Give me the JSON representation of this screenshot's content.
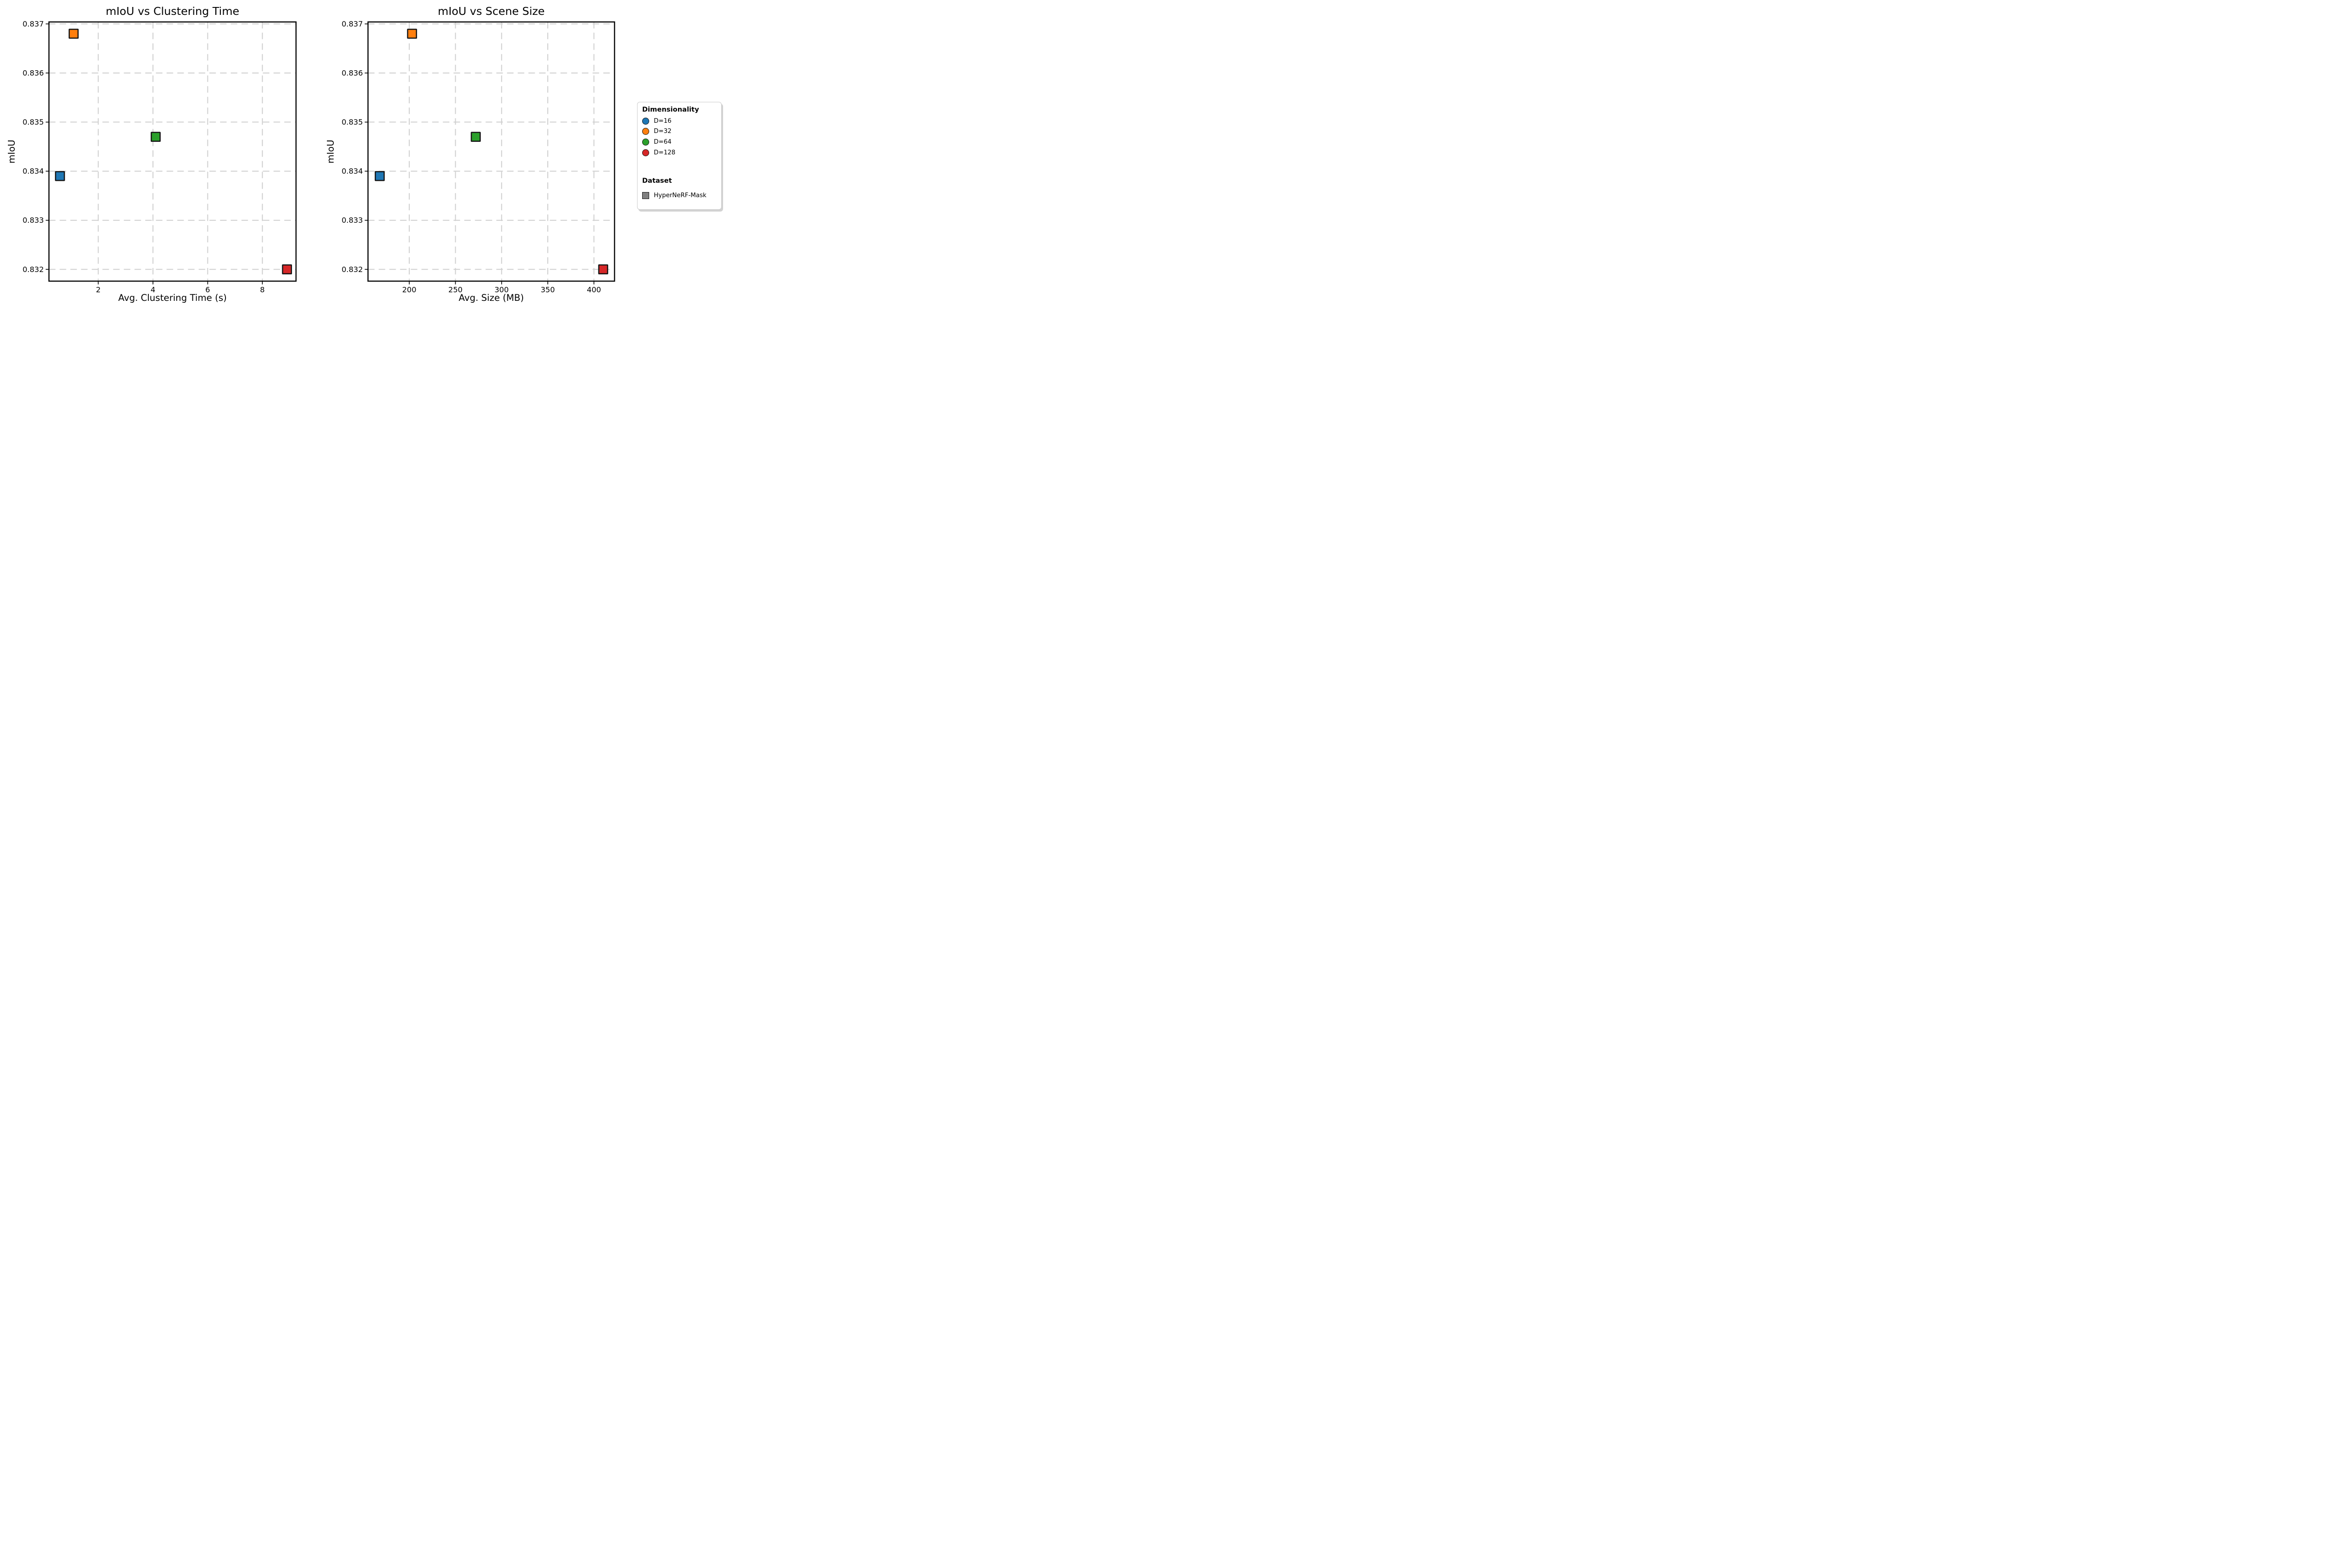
{
  "figure": {
    "background": "#ffffff",
    "text_color": "#000000",
    "grid_color": "#cfcfcf",
    "spine_color": "#000000",
    "marker_edge_color": "#151515"
  },
  "chart_data": [
    {
      "type": "scatter",
      "title": "mIoU vs Clustering Time",
      "xlabel": "Avg. Clustering Time (s)",
      "ylabel": "mIoU",
      "xlim": [
        0.198,
        9.23
      ],
      "ylim": [
        0.83176,
        0.83704
      ],
      "xticks": [
        2,
        4,
        6,
        8
      ],
      "xtick_labels": [
        "2",
        "4",
        "6",
        "8"
      ],
      "yticks": [
        0.837,
        0.836,
        0.835,
        0.834,
        0.833,
        0.832
      ],
      "ytick_labels": [
        "0.837",
        "0.836",
        "0.835",
        "0.834",
        "0.833",
        "0.832"
      ],
      "grid": true,
      "marker": "square",
      "series": [
        {
          "name": "D=16",
          "color": "#1f77b4",
          "x": [
            0.6
          ],
          "y": [
            0.8339
          ]
        },
        {
          "name": "D=32",
          "color": "#ff7f0e",
          "x": [
            1.1
          ],
          "y": [
            0.8368
          ]
        },
        {
          "name": "D=64",
          "color": "#2ca02c",
          "x": [
            4.1
          ],
          "y": [
            0.8347
          ]
        },
        {
          "name": "D=128",
          "color": "#d62728",
          "x": [
            8.9
          ],
          "y": [
            0.832
          ]
        }
      ]
    },
    {
      "type": "scatter",
      "title": "mIoU vs Scene Size",
      "xlabel": "Avg. Size (MB)",
      "ylabel": "mIoU",
      "xlim": [
        155.3,
        422.3
      ],
      "ylim": [
        0.83176,
        0.83704
      ],
      "xticks": [
        200,
        250,
        300,
        350,
        400
      ],
      "xtick_labels": [
        "200",
        "250",
        "300",
        "350",
        "400"
      ],
      "yticks": [
        0.837,
        0.836,
        0.835,
        0.834,
        0.833,
        0.832
      ],
      "ytick_labels": [
        "0.837",
        "0.836",
        "0.835",
        "0.834",
        "0.833",
        "0.832"
      ],
      "grid": true,
      "marker": "square",
      "series": [
        {
          "name": "D=16",
          "color": "#1f77b4",
          "x": [
            168
          ],
          "y": [
            0.8339
          ]
        },
        {
          "name": "D=32",
          "color": "#ff7f0e",
          "x": [
            203
          ],
          "y": [
            0.8368
          ]
        },
        {
          "name": "D=64",
          "color": "#2ca02c",
          "x": [
            272
          ],
          "y": [
            0.8347
          ]
        },
        {
          "name": "D=128",
          "color": "#d62728",
          "x": [
            410
          ],
          "y": [
            0.832
          ]
        }
      ]
    }
  ],
  "legend": {
    "position": "right",
    "dimensionality_title": "Dimensionality",
    "dimensionality_items": [
      {
        "label": "D=16",
        "color": "#1f77b4",
        "shape": "circle"
      },
      {
        "label": "D=32",
        "color": "#ff7f0e",
        "shape": "circle"
      },
      {
        "label": "D=64",
        "color": "#2ca02c",
        "shape": "circle"
      },
      {
        "label": "D=128",
        "color": "#d62728",
        "shape": "circle"
      }
    ],
    "dataset_title": "Dataset",
    "dataset_items": [
      {
        "label": "HyperNeRF-Mask",
        "color": "#7f7f7f",
        "shape": "square"
      }
    ]
  }
}
